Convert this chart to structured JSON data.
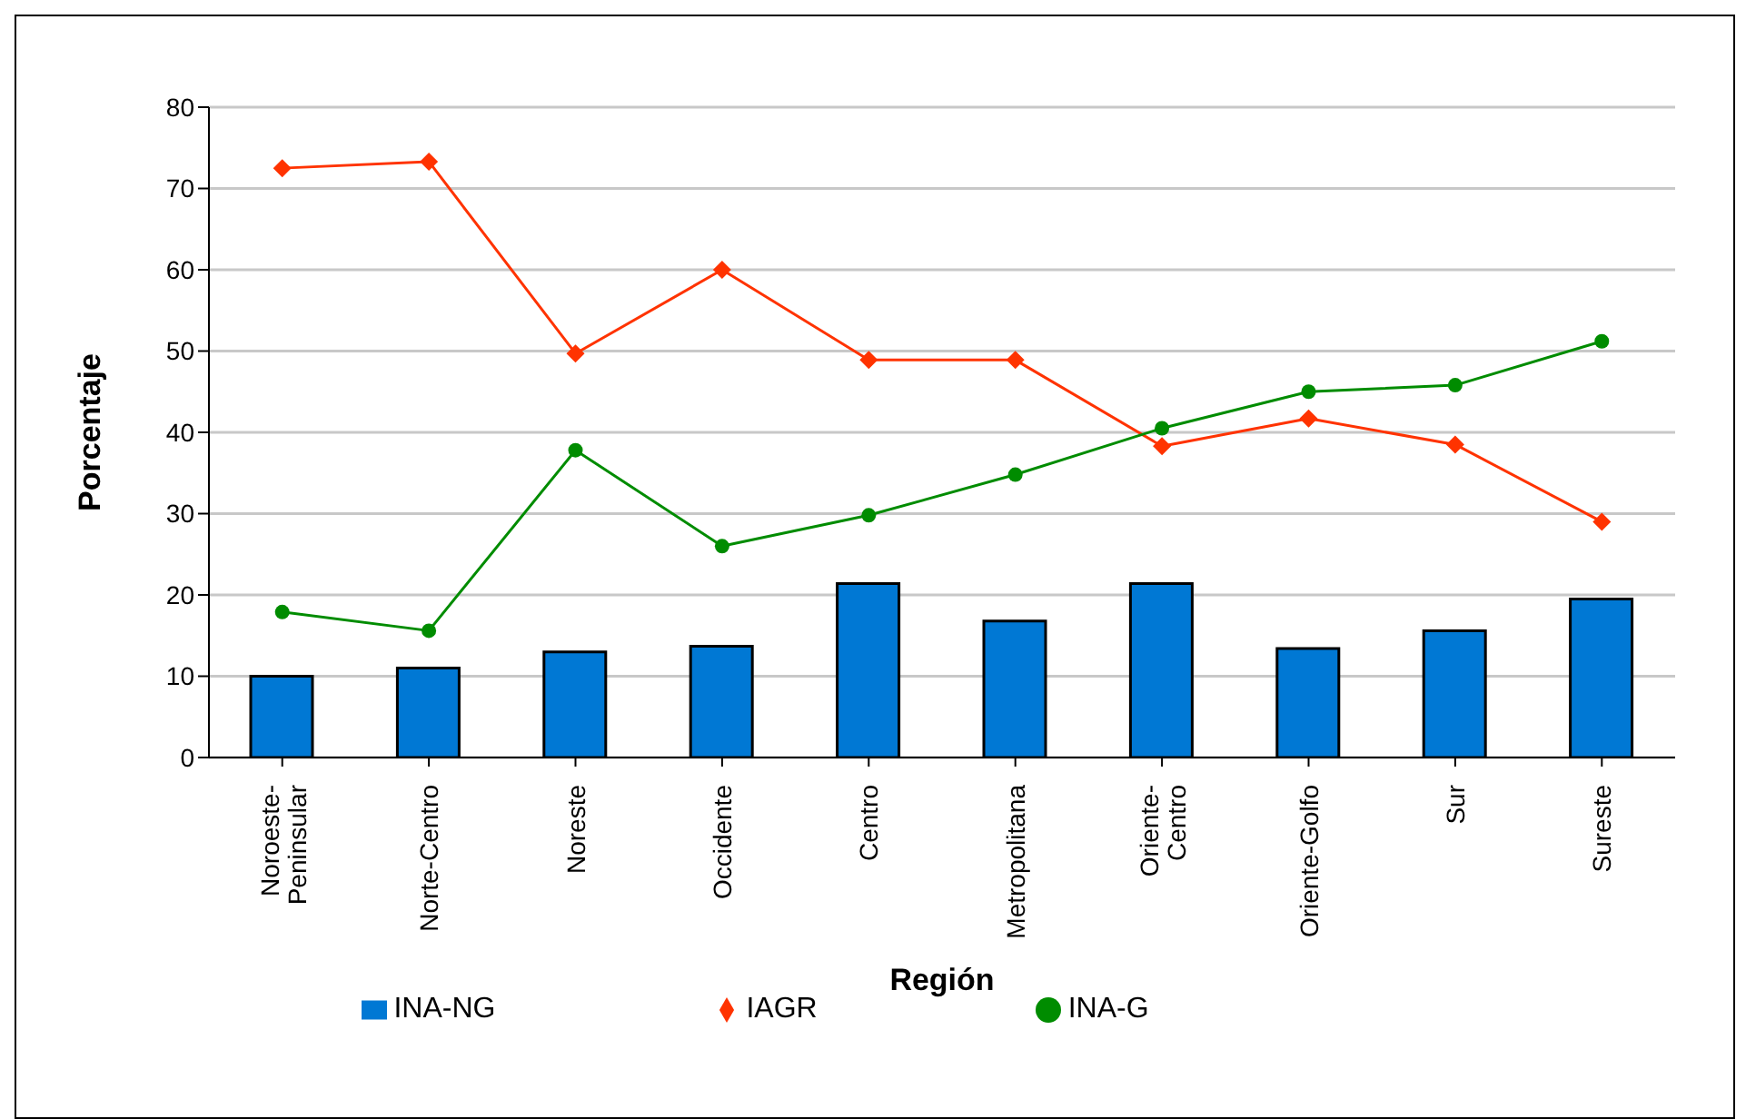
{
  "chart_data": {
    "type": "bar",
    "xlabel": "Región",
    "ylabel": "Porcentaje",
    "categories": [
      "Noroeste-Peninsular",
      "Norte-Centro",
      "Noreste",
      "Occidente",
      "Centro",
      "Metropolitana",
      "Oriente-Centro",
      "Oriente-Golfo",
      "Sur",
      "Sureste"
    ],
    "series": [
      {
        "name": "INA-NG",
        "color": "#0078d4",
        "values": [
          10.0,
          11.0,
          13.0,
          13.7,
          21.4,
          16.8,
          21.4,
          13.4,
          15.6,
          19.5
        ]
      },
      {
        "name": "IAGR",
        "type": "line",
        "color": "#ff3300",
        "marker": "diamond",
        "values": [
          72.5,
          73.3,
          49.7,
          60.0,
          48.9,
          48.9,
          38.3,
          41.7,
          38.5,
          29.0
        ]
      },
      {
        "name": "INA-G",
        "type": "line",
        "color": "#008c00",
        "marker": "circle",
        "values": [
          17.9,
          15.6,
          37.8,
          26.0,
          29.8,
          34.8,
          40.5,
          45.0,
          45.8,
          51.2
        ]
      }
    ],
    "ylim": [
      0,
      80
    ],
    "yticks": [
      0,
      10,
      20,
      30,
      40,
      50,
      60,
      70,
      80
    ],
    "grid": "y",
    "legend": "bottom"
  }
}
